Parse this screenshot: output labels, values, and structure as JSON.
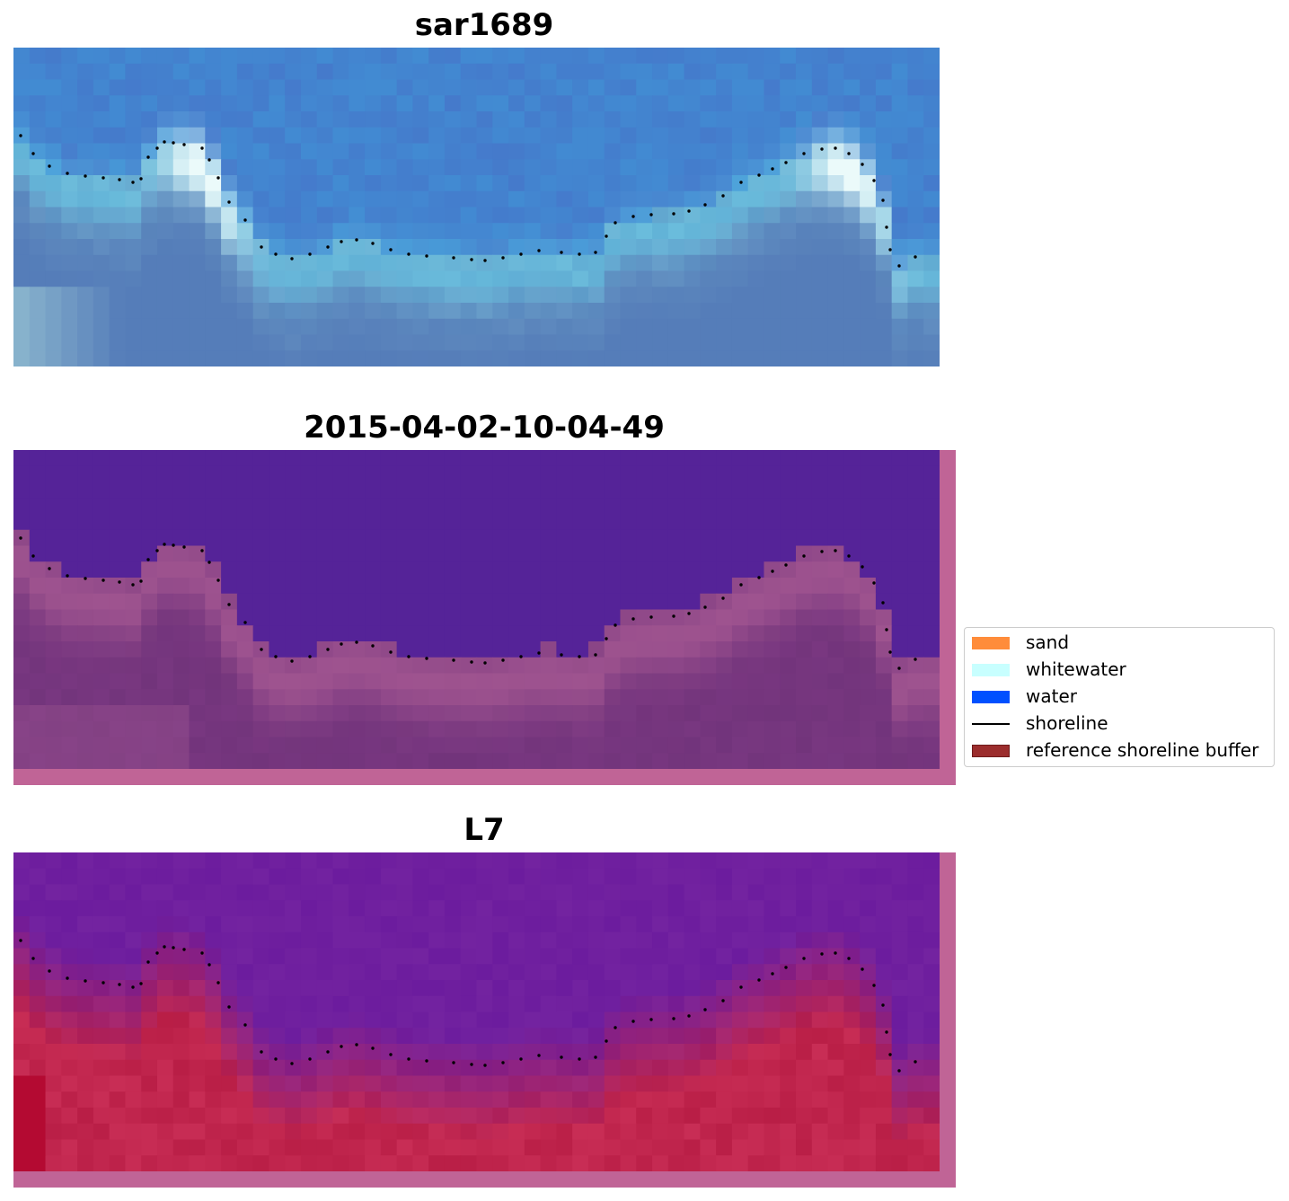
{
  "panels": [
    {
      "title": "sar1689",
      "style": "rgb"
    },
    {
      "title": "2015-04-02-10-04-49",
      "style": "class"
    },
    {
      "title": "L7",
      "style": "index"
    }
  ],
  "legend": {
    "items": [
      {
        "label": "sand",
        "color": "#ff8c3a",
        "kind": "patch"
      },
      {
        "label": "whitewater",
        "color": "#c8ffff",
        "kind": "patch"
      },
      {
        "label": "water",
        "color": "#0050ff",
        "kind": "patch"
      },
      {
        "label": "shoreline",
        "color": "#000000",
        "kind": "line"
      },
      {
        "label": "reference shoreline buffer",
        "color": "#9b2d2d",
        "kind": "patch-edged"
      }
    ]
  },
  "colors": {
    "class_water": "#552398",
    "class_land": "#7a3a80",
    "index_water": "#7222a2",
    "index_land": "#c62a58",
    "buffer_overlay": "#c06496"
  }
}
